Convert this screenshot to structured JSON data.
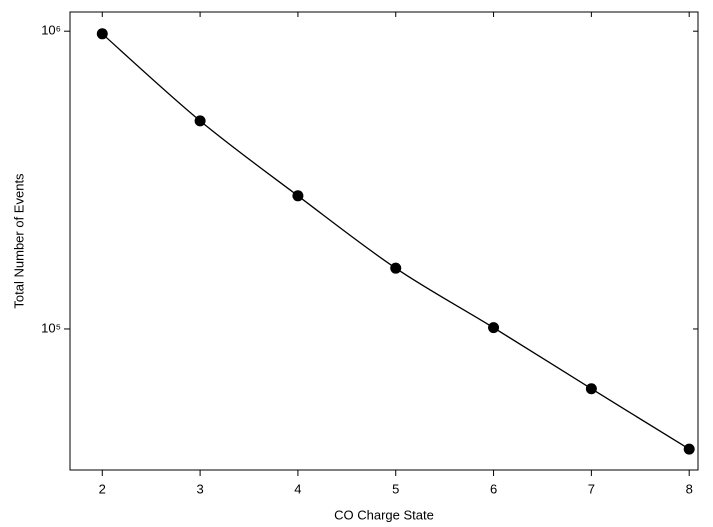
{
  "chart_data": {
    "type": "line",
    "x_label": "CO Charge State",
    "y_label": "Total Number of Events",
    "x": [
      2,
      3,
      4,
      5,
      6,
      7,
      8
    ],
    "series": [
      {
        "color": "#000000",
        "values": [
          980000,
          500000,
          280000,
          160000,
          101000,
          63000,
          39500
        ]
      }
    ],
    "xlim": [
      1.67,
      8.09
    ],
    "xticks": [
      2,
      3,
      4,
      5,
      6,
      7,
      8
    ],
    "ylim": [
      33600,
      1160000
    ],
    "yticks": [
      {
        "value": 1000000,
        "label": "10⁶"
      },
      {
        "value": 100000,
        "label": "10⁵"
      }
    ],
    "ylog": true,
    "grid": false
  }
}
